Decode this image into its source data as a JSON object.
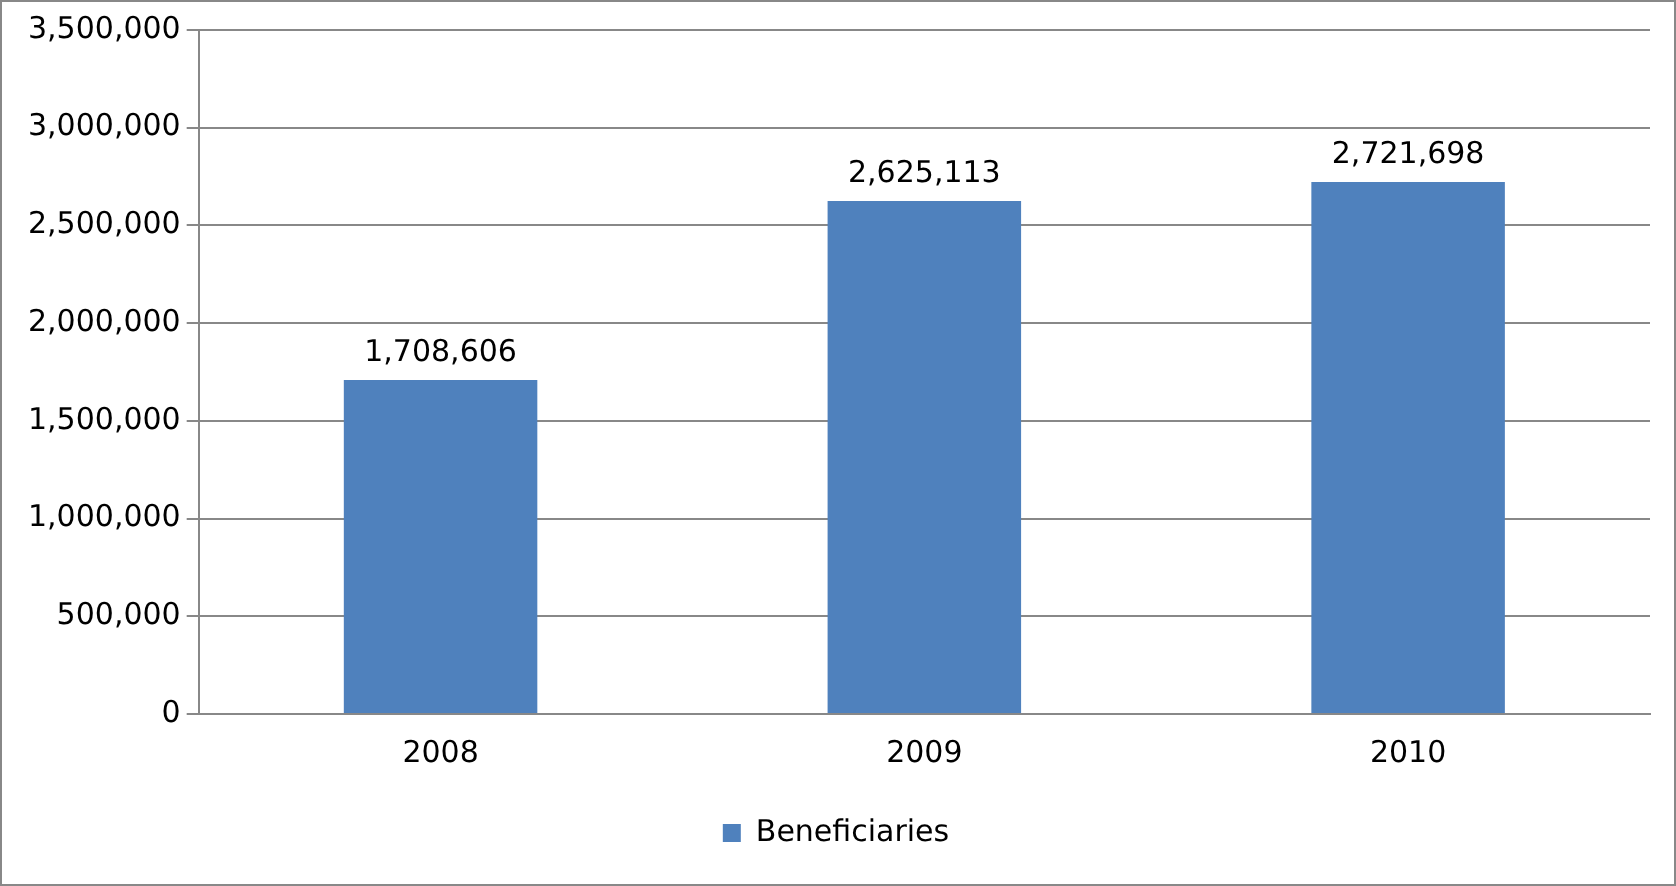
{
  "chart_data": {
    "type": "bar",
    "categories": [
      "2008",
      "2009",
      "2010"
    ],
    "series": [
      {
        "name": "Beneficiaries",
        "color": "#4f81bd",
        "values": [
          1708606,
          2625113,
          2721698
        ],
        "value_labels": [
          "1,708,606",
          "2,625,113",
          "2,721,698"
        ]
      }
    ],
    "ylim": [
      0,
      3500000
    ],
    "yticks": [
      0,
      {
        "value": 500000,
        "label": "500,000"
      },
      {
        "value": 1000000,
        "label": "1,000,000"
      },
      {
        "value": 1500000,
        "label": "1,500,000"
      },
      {
        "value": 2000000,
        "label": "2,000,000"
      },
      {
        "value": 2500000,
        "label": "2,500,000"
      },
      {
        "value": 3000000,
        "label": "3,000,000"
      },
      {
        "value": 3500000,
        "label": "3,500,000"
      }
    ],
    "grid": "y",
    "legend": "bottom"
  }
}
